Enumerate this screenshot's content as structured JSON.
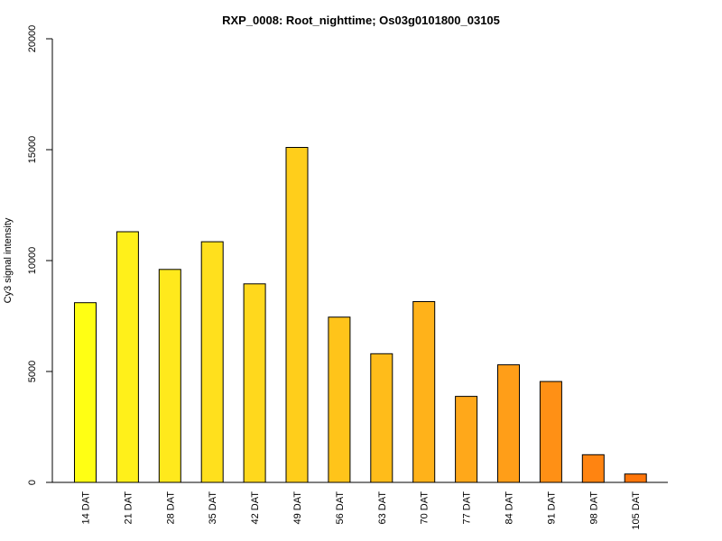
{
  "chart_data": {
    "type": "bar",
    "title": "RXP_0008: Root_nighttime; Os03g0101800_03105",
    "xlabel": "",
    "ylabel": "Cy3 signal intensity",
    "ylim": [
      0,
      20000
    ],
    "yticks": [
      0,
      5000,
      10000,
      15000,
      20000
    ],
    "ytick_labels": [
      "0",
      "5000",
      "10000",
      "15000",
      "20000"
    ],
    "categories": [
      "14 DAT",
      "21 DAT",
      "28 DAT",
      "35 DAT",
      "42 DAT",
      "49 DAT",
      "56 DAT",
      "63 DAT",
      "70 DAT",
      "77 DAT",
      "84 DAT",
      "91 DAT",
      "98 DAT",
      "105 DAT"
    ],
    "values": [
      8100,
      11300,
      9600,
      10850,
      8950,
      15100,
      7450,
      5800,
      8150,
      3880,
      5300,
      4550,
      1250,
      380
    ],
    "colors": [
      "#ffff14",
      "#fff01a",
      "#ffe91c",
      "#ffe01d",
      "#ffd81d",
      "#ffce1b",
      "#ffc41a",
      "#ffbc1a",
      "#ffb21a",
      "#ffa81a",
      "#ff9e18",
      "#ff9015",
      "#ff8411",
      "#ff760a"
    ],
    "grid": false,
    "legend": "none"
  }
}
